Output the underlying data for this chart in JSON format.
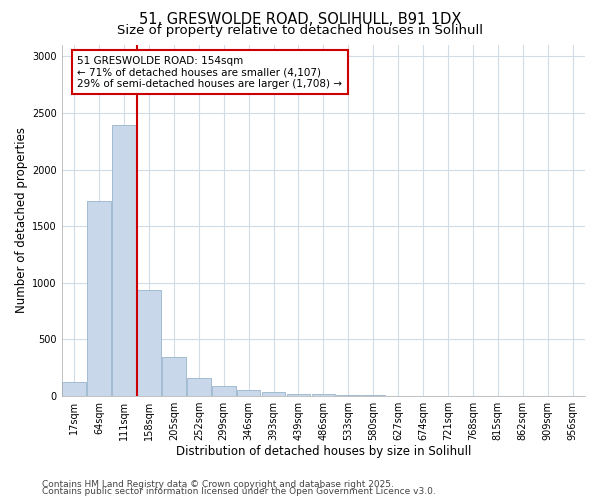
{
  "title1": "51, GRESWOLDE ROAD, SOLIHULL, B91 1DX",
  "title2": "Size of property relative to detached houses in Solihull",
  "xlabel": "Distribution of detached houses by size in Solihull",
  "ylabel": "Number of detached properties",
  "categories": [
    "17sqm",
    "64sqm",
    "111sqm",
    "158sqm",
    "205sqm",
    "252sqm",
    "299sqm",
    "346sqm",
    "393sqm",
    "439sqm",
    "486sqm",
    "533sqm",
    "580sqm",
    "627sqm",
    "674sqm",
    "721sqm",
    "768sqm",
    "815sqm",
    "862sqm",
    "909sqm",
    "956sqm"
  ],
  "values": [
    120,
    1720,
    2390,
    940,
    340,
    155,
    90,
    55,
    35,
    20,
    15,
    10,
    8,
    0,
    0,
    0,
    0,
    0,
    0,
    0,
    0
  ],
  "bar_color": "#c8d8ea",
  "bar_edge_color": "#9ab5cc",
  "red_line_x": 2.5,
  "annotation_line1": "51 GRESWOLDE ROAD: 154sqm",
  "annotation_line2": "← 71% of detached houses are smaller (4,107)",
  "annotation_line3": "29% of semi-detached houses are larger (1,708) →",
  "annotation_box_color": "#ffffff",
  "annotation_box_edge": "#cc0000",
  "ylim": [
    0,
    3100
  ],
  "yticks": [
    0,
    500,
    1000,
    1500,
    2000,
    2500,
    3000
  ],
  "footnote1": "Contains HM Land Registry data © Crown copyright and database right 2025.",
  "footnote2": "Contains public sector information licensed under the Open Government Licence v3.0.",
  "bg_color": "#ffffff",
  "grid_color": "#d0dce8",
  "title_fontsize": 10.5,
  "subtitle_fontsize": 9.5,
  "axis_label_fontsize": 8.5,
  "tick_fontsize": 7,
  "annotation_fontsize": 7.5,
  "footnote_fontsize": 6.5
}
